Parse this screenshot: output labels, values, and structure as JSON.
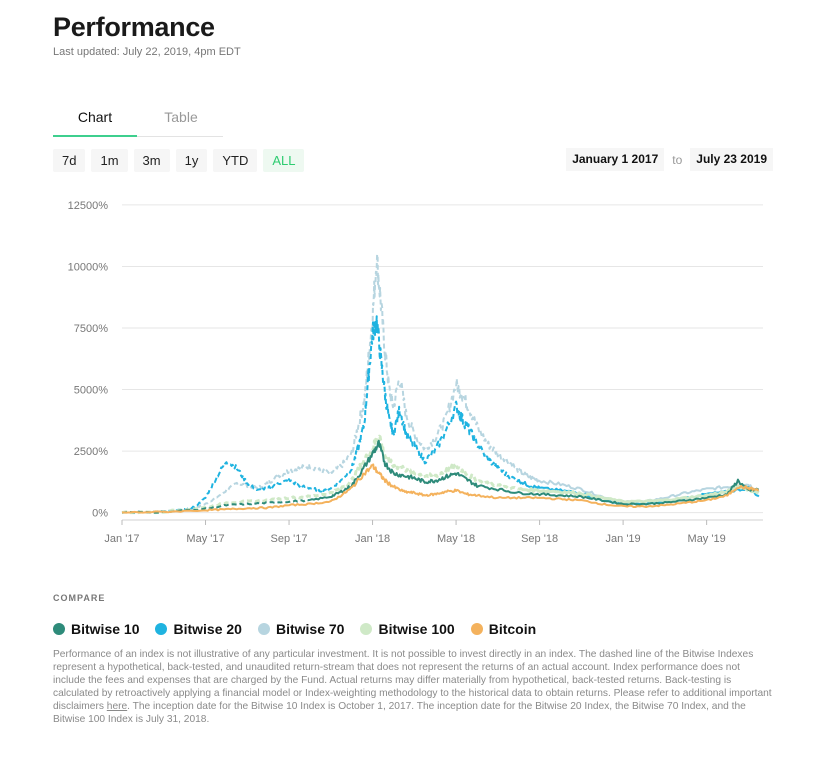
{
  "header": {
    "title": "Performance",
    "updated": "Last updated: July 22, 2019, 4pm EDT"
  },
  "tabs": [
    {
      "label": "Chart",
      "active": true
    },
    {
      "label": "Table",
      "active": false
    }
  ],
  "ranges": [
    {
      "label": "7d",
      "active": false
    },
    {
      "label": "1m",
      "active": false
    },
    {
      "label": "3m",
      "active": false
    },
    {
      "label": "1y",
      "active": false
    },
    {
      "label": "YTD",
      "active": false
    },
    {
      "label": "ALL",
      "active": true
    }
  ],
  "date_range": {
    "start": "January 1 2017",
    "separator": "to",
    "end": "July 23 2019"
  },
  "colors": {
    "accent": "#3ecf8e",
    "bitwise10": "#2e8b7a",
    "bitwise20": "#1fb3e0",
    "bitwise70": "#b7d5e0",
    "bitwise100": "#cfe9c7",
    "bitcoin": "#f4b25d"
  },
  "compare": {
    "label": "COMPARE",
    "items": [
      {
        "name": "Bitwise 10",
        "color": "#2e8b7a"
      },
      {
        "name": "Bitwise 20",
        "color": "#1fb3e0"
      },
      {
        "name": "Bitwise 70",
        "color": "#b7d5e0"
      },
      {
        "name": "Bitwise 100",
        "color": "#cfe9c7"
      },
      {
        "name": "Bitcoin",
        "color": "#f4b25d"
      }
    ]
  },
  "disclaimer": {
    "part1": "Performance of an index is not illustrative of any particular investment. It is not possible to invest directly in an index. The dashed line of the Bitwise Indexes represent a hypothetical, back-tested, and unaudited return-stream that does not represent the returns of an actual account. Index performance does not include the fees and expenses that are charged by the Fund. Actual returns may differ materially from hypothetical, back-tested returns. Back-testing is calculated by retroactively applying a financial model or Index-weighting methodology to the historical data to obtain returns. Please refer to additional important disclaimers ",
    "link": "here",
    "part2": ". The inception date for the Bitwise 10 Index is October 1, 2017. The inception date for the Bitwise 20 Index, the Bitwise 70 Index, and the Bitwise 100 Index is July 31, 2018."
  },
  "chart_data": {
    "type": "line",
    "title": "",
    "xlabel": "",
    "ylabel": "",
    "x_domain": [
      0,
      30.7
    ],
    "ylim": [
      -300,
      12700
    ],
    "y_ticks": [
      {
        "value": 0,
        "label": "0%"
      },
      {
        "value": 2500,
        "label": "2500%"
      },
      {
        "value": 5000,
        "label": "5000%"
      },
      {
        "value": 7500,
        "label": "7500%"
      },
      {
        "value": 10000,
        "label": "10000%"
      },
      {
        "value": 12500,
        "label": "12500%"
      }
    ],
    "x_ticks": [
      {
        "value": 0,
        "label": "Jan '17"
      },
      {
        "value": 4,
        "label": "May '17"
      },
      {
        "value": 8,
        "label": "Sep '17"
      },
      {
        "value": 12,
        "label": "Jan '18"
      },
      {
        "value": 16,
        "label": "May '18"
      },
      {
        "value": 20,
        "label": "Sep '18"
      },
      {
        "value": 24,
        "label": "Jan '19"
      },
      {
        "value": 28,
        "label": "May '19"
      }
    ],
    "series": [
      {
        "name": "Bitwise 70",
        "color": "#b7d5e0",
        "dashed_until": 19.0,
        "width": 2,
        "x": [
          0,
          1,
          2,
          3,
          3.5,
          4,
          4.5,
          5,
          5.5,
          6,
          6.5,
          7,
          7.5,
          8,
          8.5,
          9,
          9.5,
          10,
          10.5,
          11,
          11.3,
          11.6,
          11.8,
          12,
          12.2,
          12.4,
          12.6,
          12.8,
          13,
          13.3,
          13.6,
          14,
          14.5,
          15,
          15.5,
          16,
          16.3,
          16.6,
          17,
          17.5,
          18,
          18.5,
          19,
          19.5,
          20,
          21,
          22,
          23,
          24,
          25,
          26,
          27,
          28,
          29,
          30,
          30.5
        ],
        "values": [
          0,
          20,
          40,
          100,
          180,
          350,
          600,
          900,
          1200,
          1100,
          1000,
          1200,
          1500,
          1700,
          1800,
          1900,
          1700,
          1600,
          1900,
          2400,
          3500,
          4500,
          6200,
          8000,
          10400,
          8500,
          6500,
          5000,
          4300,
          5500,
          4000,
          3200,
          2600,
          3000,
          3800,
          5200,
          4800,
          4300,
          3500,
          2800,
          2400,
          2100,
          1700,
          1450,
          1300,
          1150,
          950,
          650,
          450,
          450,
          600,
          800,
          950,
          1050,
          1150,
          850
        ]
      },
      {
        "name": "Bitwise 20",
        "color": "#1fb3e0",
        "dashed_until": 19.0,
        "width": 2,
        "x": [
          0,
          1,
          2,
          3,
          3.5,
          4,
          4.5,
          5,
          5.5,
          6,
          6.5,
          7,
          7.5,
          8,
          8.5,
          9,
          9.5,
          10,
          10.5,
          11,
          11.3,
          11.6,
          11.8,
          12,
          12.2,
          12.4,
          12.6,
          12.8,
          13,
          13.3,
          13.6,
          14,
          14.5,
          15,
          15.5,
          16,
          16.3,
          16.6,
          17,
          17.5,
          18,
          18.5,
          19,
          19.5,
          20,
          21,
          22,
          23,
          24,
          25,
          26,
          27,
          28,
          29,
          30,
          30.5
        ],
        "values": [
          0,
          20,
          40,
          120,
          250,
          600,
          1400,
          2100,
          1800,
          1200,
          900,
          1000,
          1200,
          1300,
          1100,
          1000,
          900,
          1000,
          1300,
          1800,
          2600,
          3600,
          5500,
          7300,
          7800,
          6200,
          4800,
          3700,
          3200,
          4200,
          3200,
          2700,
          2100,
          2500,
          3300,
          4300,
          3800,
          3400,
          2800,
          2200,
          1800,
          1500,
          1300,
          1100,
          1000,
          900,
          800,
          500,
          350,
          350,
          450,
          600,
          750,
          850,
          1000,
          650
        ]
      },
      {
        "name": "Bitwise 100",
        "color": "#cfe9c7",
        "dashed_until": 19.0,
        "width": 3,
        "x": [
          0,
          2,
          4,
          5,
          6,
          7,
          8,
          9,
          10,
          10.5,
          11,
          11.5,
          12,
          12.3,
          12.6,
          13,
          13.5,
          14,
          14.5,
          15,
          15.5,
          16,
          16.5,
          17,
          18,
          19,
          20,
          21,
          22,
          23,
          24,
          25,
          26,
          27,
          28,
          29,
          29.5,
          30,
          30.5
        ],
        "values": [
          0,
          40,
          200,
          400,
          450,
          500,
          600,
          650,
          800,
          1000,
          1300,
          2000,
          2600,
          3200,
          2300,
          1900,
          1800,
          1600,
          1500,
          1500,
          1700,
          1900,
          1600,
          1300,
          1100,
          950,
          900,
          850,
          780,
          600,
          450,
          450,
          500,
          600,
          700,
          850,
          1100,
          950,
          800
        ]
      },
      {
        "name": "Bitwise 10",
        "color": "#2e8b7a",
        "dashed_until": 9.0,
        "width": 2,
        "x": [
          0,
          2,
          4,
          5,
          6,
          7,
          8,
          9,
          10,
          10.5,
          11,
          11.5,
          12,
          12.3,
          12.6,
          13,
          13.5,
          14,
          14.5,
          15,
          15.5,
          16,
          16.5,
          17,
          18,
          19,
          20,
          21,
          22,
          23,
          24,
          25,
          26,
          27,
          28,
          29,
          29.5,
          30,
          30.5
        ],
        "values": [
          0,
          30,
          150,
          300,
          350,
          400,
          450,
          500,
          650,
          850,
          1100,
          1700,
          2400,
          2800,
          2000,
          1600,
          1500,
          1400,
          1250,
          1300,
          1450,
          1600,
          1350,
          1100,
          950,
          800,
          750,
          700,
          650,
          500,
          350,
          350,
          400,
          500,
          600,
          750,
          1300,
          900,
          950
        ]
      },
      {
        "name": "Bitcoin",
        "color": "#f4b25d",
        "dashed_until": null,
        "width": 2,
        "x": [
          0,
          2,
          4,
          5,
          6,
          7,
          8,
          9,
          10,
          10.5,
          11,
          11.5,
          12,
          12.3,
          12.6,
          13,
          13.5,
          14,
          14.5,
          15,
          15.5,
          16,
          16.5,
          17,
          18,
          19,
          20,
          21,
          22,
          23,
          24,
          25,
          26,
          27,
          28,
          29,
          29.5,
          30,
          30.5
        ],
        "values": [
          0,
          30,
          100,
          130,
          180,
          200,
          300,
          350,
          450,
          700,
          1000,
          1500,
          1900,
          1600,
          1300,
          1050,
          850,
          800,
          700,
          750,
          850,
          900,
          750,
          700,
          600,
          600,
          600,
          550,
          500,
          350,
          250,
          250,
          300,
          400,
          500,
          700,
          1050,
          1000,
          900
        ]
      }
    ]
  }
}
